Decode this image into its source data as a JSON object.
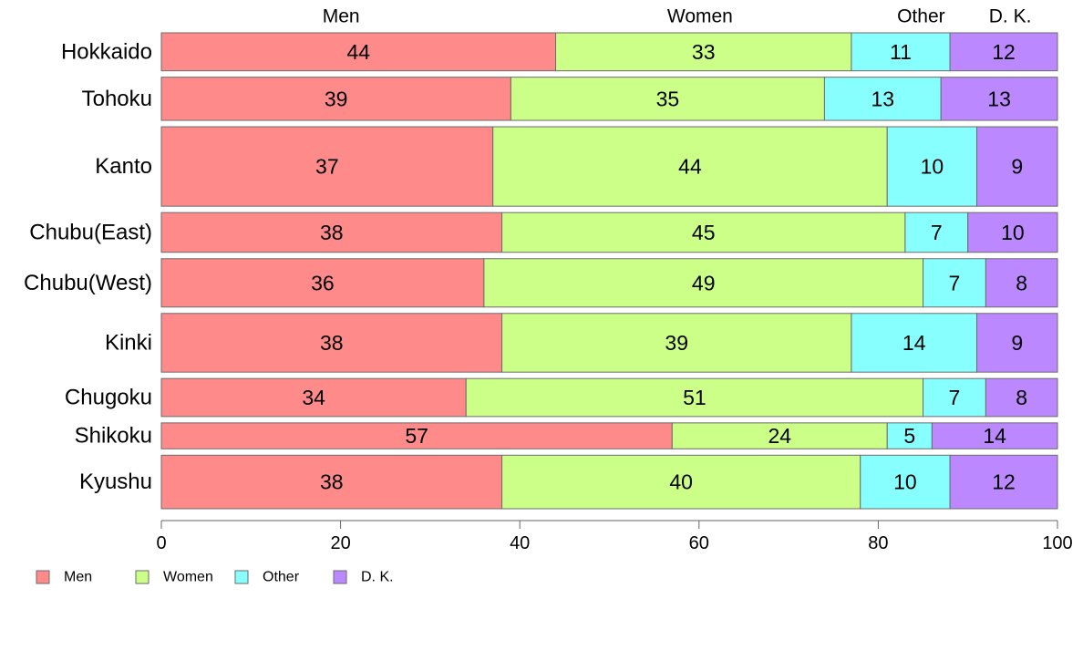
{
  "chart_data": {
    "type": "bar",
    "orientation": "horizontal",
    "stacked": true,
    "variable_width": true,
    "categories": [
      "Hokkaido",
      "Tohoku",
      "Kanto",
      "Chubu(East)",
      "Chubu(West)",
      "Kinki",
      "Chugoku",
      "Shikoku",
      "Kyushu"
    ],
    "series": [
      {
        "name": "Men",
        "color": "#ff8a8a",
        "values": [
          44,
          39,
          37,
          38,
          36,
          38,
          34,
          57,
          38
        ]
      },
      {
        "name": "Women",
        "color": "#ccff88",
        "values": [
          33,
          35,
          44,
          45,
          49,
          39,
          51,
          24,
          40
        ]
      },
      {
        "name": "Other",
        "color": "#88ffff",
        "values": [
          11,
          13,
          10,
          7,
          7,
          14,
          7,
          5,
          10
        ]
      },
      {
        "name": "D. K.",
        "color": "#bb88ff",
        "values": [
          12,
          13,
          9,
          10,
          8,
          9,
          8,
          14,
          12
        ]
      }
    ],
    "bar_widths": [
      0.44,
      0.5,
      0.92,
      0.46,
      0.56,
      0.68,
      0.44,
      0.3,
      0.62
    ],
    "top_labels": [
      "Men",
      "Women",
      "Other",
      "D. K."
    ],
    "xlim": [
      0,
      100
    ],
    "xticks": [
      0,
      20,
      40,
      60,
      80,
      100
    ],
    "legend": {
      "position": "bottom-left",
      "entries": [
        "Men",
        "Women",
        "Other",
        "D. K."
      ]
    },
    "grid": false
  }
}
